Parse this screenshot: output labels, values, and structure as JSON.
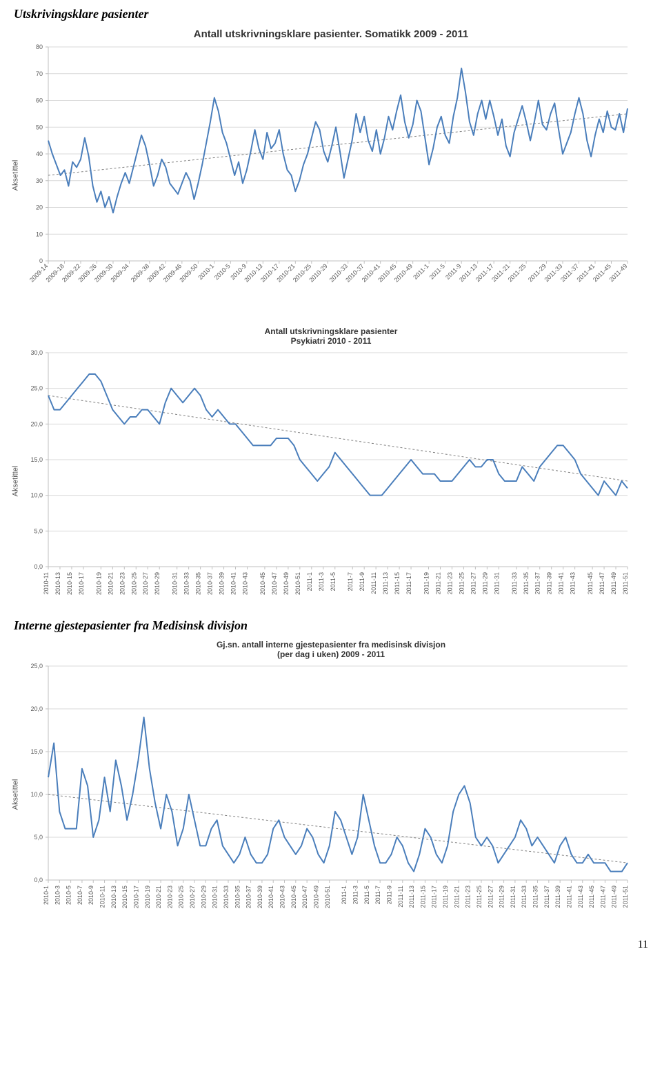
{
  "page_title": "Utskrivingsklare pasienter",
  "section2_title": "Interne gjestepasienter fra Medisinsk divisjon",
  "page_number": "11",
  "chart1": {
    "type": "line",
    "title": "Antall utskrivningsklare pasienter. Somatikk 2009 - 2011",
    "ylabel": "Aksetittel",
    "title_fontsize": 15,
    "label_fontsize": 11,
    "tick_fontsize": 9,
    "series_color": "#4a7ebb",
    "trend_color": "#808080",
    "grid_color": "#d9d9d9",
    "axis_color": "#bfbfbf",
    "background_color": "#ffffff",
    "ylim": [
      0,
      80
    ],
    "yticks": [
      0,
      10,
      20,
      30,
      40,
      50,
      60,
      70,
      80
    ],
    "x_labels": [
      "2009-14",
      "2009-18",
      "2009-22",
      "2009-26",
      "2009-30",
      "2009-34",
      "2009-38",
      "2009-42",
      "2009-46",
      "2009-50",
      "2010-1",
      "2010-5",
      "2010-9",
      "2010-13",
      "2010-17",
      "2010-21",
      "2010-25",
      "2010-29",
      "2010-33",
      "2010-37",
      "2010-41",
      "2010-45",
      "2010-49",
      "2011-1",
      "2011-5",
      "2011-9",
      "2011-13",
      "2011-17",
      "2011-21",
      "2011-25",
      "2011-29",
      "2011-33",
      "2011-37",
      "2011-41",
      "2011-45",
      "2011-49"
    ],
    "values": [
      45,
      40,
      36,
      32,
      34,
      28,
      37,
      35,
      38,
      46,
      39,
      28,
      22,
      26,
      20,
      24,
      18,
      24,
      29,
      33,
      29,
      35,
      41,
      47,
      43,
      36,
      28,
      32,
      38,
      35,
      29,
      27,
      25,
      29,
      33,
      30,
      23,
      29,
      36,
      44,
      52,
      61,
      56,
      48,
      44,
      38,
      32,
      37,
      29,
      34,
      41,
      49,
      42,
      38,
      48,
      42,
      44,
      49,
      40,
      34,
      32,
      26,
      30,
      36,
      40,
      46,
      52,
      49,
      41,
      37,
      43,
      50,
      41,
      31,
      38,
      45,
      55,
      48,
      54,
      45,
      41,
      49,
      40,
      46,
      54,
      49,
      56,
      62,
      52,
      46,
      51,
      60,
      56,
      46,
      36,
      42,
      50,
      54,
      47,
      44,
      54,
      61,
      72,
      63,
      52,
      47,
      55,
      60,
      53,
      60,
      54,
      47,
      53,
      43,
      39,
      48,
      53,
      58,
      52,
      45,
      52,
      60,
      51,
      49,
      55,
      59,
      49,
      40,
      44,
      48,
      55,
      61,
      55,
      45,
      39,
      47,
      53,
      48,
      56,
      50,
      49,
      55,
      48,
      57
    ],
    "trend": {
      "start_y": 32,
      "end_y": 55
    },
    "line_width": 2
  },
  "chart2": {
    "type": "line",
    "title": "Antall utskrivningsklare pasienter\nPsykiatri 2010 - 2011",
    "ylabel": "Aksetittel",
    "title_fontsize": 12,
    "label_fontsize": 11,
    "tick_fontsize": 9,
    "series_color": "#4a7ebb",
    "trend_color": "#808080",
    "grid_color": "#d9d9d9",
    "axis_color": "#bfbfbf",
    "background_color": "#ffffff",
    "ylim": [
      0,
      30
    ],
    "yticks": [
      0.0,
      5.0,
      10.0,
      15.0,
      20.0,
      25.0,
      30.0
    ],
    "ytick_format": "0.0",
    "x_labels": [
      "2010-11",
      "2010-13",
      "2010-15",
      "2010-17",
      "2010-19",
      "2010-21",
      "2010-23",
      "2010-25",
      "2010-27",
      "2010-29",
      "2010-31",
      "2010-33",
      "2010-35",
      "2010-37",
      "2010-39",
      "2010-41",
      "2010-43",
      "2010-45",
      "2010-47",
      "2010-49",
      "2010-51",
      "2011-1",
      "2011-3",
      "2011-5",
      "2011-7",
      "2011-9",
      "2011-11",
      "2011-13",
      "2011-15",
      "2011-17",
      "2011-19",
      "2011-21",
      "2011-23",
      "2011-25",
      "2011-27",
      "2011-29",
      "2011-31",
      "2011-33",
      "2011-35",
      "2011-37",
      "2011-39",
      "2011-41",
      "2011-43",
      "2011-45",
      "2011-47",
      "2011-49",
      "2011-51"
    ],
    "values": [
      24,
      22,
      22,
      23,
      24,
      25,
      26,
      27,
      27,
      26,
      24,
      22,
      21,
      20,
      21,
      21,
      22,
      22,
      21,
      20,
      23,
      25,
      24,
      23,
      24,
      25,
      24,
      22,
      21,
      22,
      21,
      20,
      20,
      19,
      18,
      17,
      17,
      17,
      17,
      18,
      18,
      18,
      17,
      15,
      14,
      13,
      12,
      13,
      14,
      16,
      15,
      14,
      13,
      12,
      11,
      10,
      10,
      10,
      11,
      12,
      13,
      14,
      15,
      14,
      13,
      13,
      13,
      12,
      12,
      12,
      13,
      14,
      15,
      14,
      14,
      15,
      15,
      13,
      12,
      12,
      12,
      14,
      13,
      12,
      14,
      15,
      16,
      17,
      17,
      16,
      15,
      13,
      12,
      11,
      10,
      12,
      11,
      10,
      12,
      11
    ],
    "trend": {
      "start_y": 24,
      "end_y": 12
    },
    "line_width": 2
  },
  "chart3": {
    "type": "line",
    "title": "Gj.sn. antall interne gjestepasienter fra medisinsk divisjon\n(per dag i uken) 2009 - 2011",
    "ylabel": "Aksetittel",
    "title_fontsize": 12,
    "label_fontsize": 11,
    "tick_fontsize": 9,
    "series_color": "#4a7ebb",
    "trend_color": "#808080",
    "grid_color": "#d9d9d9",
    "axis_color": "#bfbfbf",
    "background_color": "#ffffff",
    "ylim": [
      0,
      25
    ],
    "yticks": [
      0.0,
      5.0,
      10.0,
      15.0,
      20.0,
      25.0
    ],
    "ytick_format": "0.0",
    "x_labels": [
      "2010-1",
      "2010-3",
      "2010-5",
      "2010-7",
      "2010-9",
      "2010-11",
      "2010-13",
      "2010-15",
      "2010-17",
      "2010-19",
      "2010-21",
      "2010-23",
      "2010-25",
      "2010-27",
      "2010-29",
      "2010-31",
      "2010-33",
      "2010-35",
      "2010-37",
      "2010-39",
      "2010-41",
      "2010-43",
      "2010-45",
      "2010-47",
      "2010-49",
      "2010-51",
      "2011-1",
      "2011-3",
      "2011-5",
      "2011-7",
      "2011-9",
      "2011-11",
      "2011-13",
      "2011-15",
      "2011-17",
      "2011-19",
      "2011-21",
      "2011-23",
      "2011-25",
      "2011-27",
      "2011-29",
      "2011-31",
      "2011-33",
      "2011-35",
      "2011-37",
      "2011-39",
      "2011-41",
      "2011-43",
      "2011-45",
      "2011-47",
      "2011-49",
      "2011-51"
    ],
    "values": [
      12,
      16,
      8,
      6,
      6,
      6,
      13,
      11,
      5,
      7,
      12,
      8,
      14,
      11,
      7,
      10,
      14,
      19,
      13,
      9,
      6,
      10,
      8,
      4,
      6,
      10,
      7,
      4,
      4,
      6,
      7,
      4,
      3,
      2,
      3,
      5,
      3,
      2,
      2,
      3,
      6,
      7,
      5,
      4,
      3,
      4,
      6,
      5,
      3,
      2,
      4,
      8,
      7,
      5,
      3,
      5,
      10,
      7,
      4,
      2,
      2,
      3,
      5,
      4,
      2,
      1,
      3,
      6,
      5,
      3,
      2,
      4,
      8,
      10,
      11,
      9,
      5,
      4,
      5,
      4,
      2,
      3,
      4,
      5,
      7,
      6,
      4,
      5,
      4,
      3,
      2,
      4,
      5,
      3,
      2,
      2,
      3,
      2,
      2,
      2,
      1,
      1,
      1,
      2
    ],
    "trend": {
      "start_y": 10,
      "end_y": 2
    },
    "line_width": 2
  }
}
